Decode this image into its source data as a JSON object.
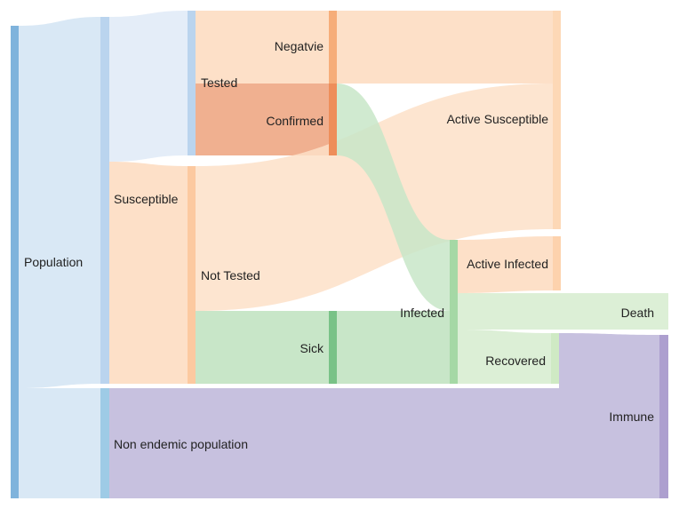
{
  "nodes": {
    "population": {
      "label": "Population",
      "color": "#7fb3dc"
    },
    "susceptible": {
      "label": "Susceptible",
      "color": "#fcc9a0"
    },
    "non_endemic": {
      "label": "Non endemic population",
      "color": "#9ecbe6"
    },
    "tested": {
      "label": "Tested",
      "color": "#bad4ee"
    },
    "not_tested": {
      "label": "Not Tested",
      "color": "#fcc9a0"
    },
    "negative": {
      "label": "Negatvie",
      "color": "#f6ad79"
    },
    "confirmed": {
      "label": "Confirmed",
      "color": "#ee8e5a"
    },
    "sick": {
      "label": "Sick",
      "color": "#79c287"
    },
    "infected": {
      "label": "Infected",
      "color": "#a5d8a5"
    },
    "active_susceptible": {
      "label": "Active Susceptible",
      "color": "#fdd8b6"
    },
    "active_infected": {
      "label": "Active Infected",
      "color": "#fdd2ad"
    },
    "death": {
      "label": "Death",
      "color": "#e2f0da"
    },
    "recovered": {
      "label": "Recovered",
      "color": "#cfeac4"
    },
    "immune": {
      "label": "Immune",
      "color": "#ad9fcf"
    }
  },
  "flow_colors": {
    "blue": "#d9e8f5",
    "blue_light": "#e4edf8",
    "peach": "#fde0c8",
    "purple": "#c7c1df",
    "green": "#c8e6c8",
    "salmon": "#f0b090",
    "green_light": "#dcefd6"
  }
}
